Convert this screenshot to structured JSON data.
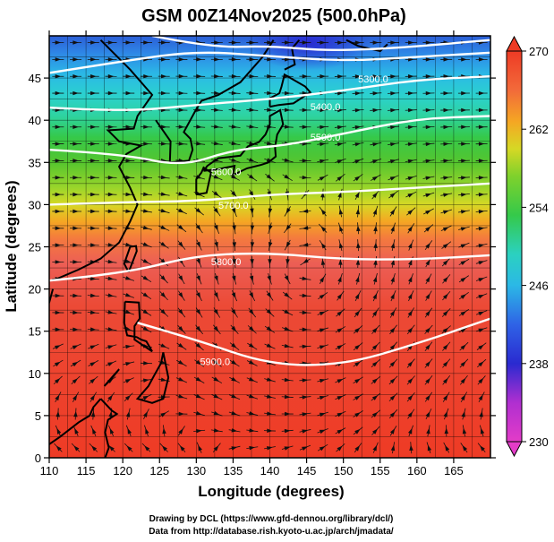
{
  "chart_data": {
    "type": "heatmap",
    "title": "GSM 00Z14Nov2025 (500.0hPa)",
    "xlabel": "Longitude (degrees)",
    "ylabel": "Latitude  (degrees)",
    "xlim": [
      110,
      170
    ],
    "ylim": [
      0,
      50
    ],
    "x_ticks": [
      110,
      115,
      120,
      125,
      130,
      135,
      140,
      145,
      150,
      155,
      160,
      165
    ],
    "y_ticks": [
      0,
      5,
      10,
      15,
      20,
      25,
      30,
      35,
      40,
      45
    ],
    "colorbar": {
      "range": [
        230,
        270
      ],
      "ticks": [
        270,
        262,
        254,
        246,
        238,
        230
      ]
    },
    "temperature_by_latitude": [
      {
        "lat": 0,
        "temp": 267
      },
      {
        "lat": 10,
        "temp": 267
      },
      {
        "lat": 20,
        "temp": 266
      },
      {
        "lat": 27,
        "temp": 265
      },
      {
        "lat": 30,
        "temp": 262
      },
      {
        "lat": 33,
        "temp": 258
      },
      {
        "lat": 36,
        "temp": 255
      },
      {
        "lat": 40,
        "temp": 252
      },
      {
        "lat": 44,
        "temp": 249
      },
      {
        "lat": 48,
        "temp": 245
      }
    ],
    "contours": [
      {
        "label": "5900.0",
        "points": [
          [
            122,
            16
          ],
          [
            130,
            14
          ],
          [
            140,
            11
          ],
          [
            150,
            11
          ],
          [
            160,
            13.5
          ],
          [
            170,
            16.5
          ]
        ],
        "label_at": [
          130.5,
          11
        ]
      },
      {
        "label": "5800.0",
        "points": [
          [
            110,
            21
          ],
          [
            120,
            21.8
          ],
          [
            130,
            24
          ],
          [
            140,
            24.3
          ],
          [
            150,
            23.5
          ],
          [
            160,
            23.5
          ],
          [
            170,
            24
          ]
        ],
        "label_at": [
          132,
          22.8
        ]
      },
      {
        "label": "5700.0",
        "points": [
          [
            110,
            30
          ],
          [
            120,
            30.3
          ],
          [
            130,
            30.4
          ],
          [
            140,
            31.2
          ],
          [
            150,
            31.5
          ],
          [
            160,
            32
          ],
          [
            170,
            32.5
          ]
        ],
        "label_at": [
          133,
          29.5
        ]
      },
      {
        "label": "5600.0",
        "points": [
          [
            110,
            36.5
          ],
          [
            120,
            36
          ],
          [
            128,
            34.5
          ],
          [
            135,
            36.5
          ],
          [
            142,
            37
          ],
          [
            150,
            38.4
          ],
          [
            160,
            40.2
          ],
          [
            170,
            40.5
          ]
        ],
        "label_at": [
          132,
          33.5
        ]
      },
      {
        "label": "5500.0",
        "points": [
          [
            110,
            41.5
          ],
          [
            120,
            41
          ],
          [
            130,
            41.8
          ],
          [
            140,
            42.5
          ],
          [
            150,
            43.5
          ],
          [
            160,
            44.8
          ],
          [
            170,
            45.2
          ]
        ],
        "label_at": [
          145.5,
          37.6
        ]
      },
      {
        "label": "5400.0",
        "points": [
          [
            110,
            45.6
          ],
          [
            120,
            47
          ],
          [
            130,
            48.2
          ],
          [
            140,
            47.6
          ],
          [
            150,
            47
          ],
          [
            160,
            47.5
          ],
          [
            170,
            48
          ]
        ],
        "label_at": [
          145.5,
          41.2
        ]
      },
      {
        "label": "5300.0",
        "points": [
          [
            124,
            50
          ],
          [
            132,
            48.6
          ],
          [
            140,
            48.8
          ],
          [
            148,
            48.2
          ],
          [
            158,
            48.6
          ],
          [
            170,
            49.5
          ]
        ],
        "label_at": [
          152,
          44.5
        ]
      }
    ],
    "wind_field": "streamline arrows with anticyclonic circulation centered near 145E, 21N",
    "credits": [
      "Drawing by DCL (https://www.gfd-dennou.org/library/dcl/)",
      "Data from http://database.rish.kyoto-u.ac.jp/arch/jmadata/"
    ]
  }
}
